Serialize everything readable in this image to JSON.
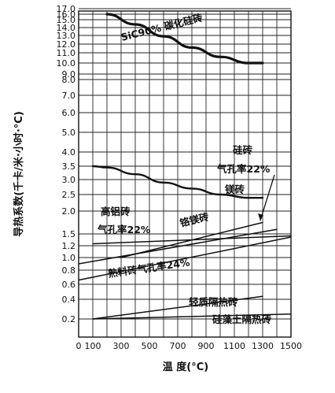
{
  "chart_data": {
    "type": "line",
    "title": "",
    "xlabel": "温 度(°C)",
    "ylabel": "导热系数(千卡/米·小时·°C)",
    "xlim": [
      0,
      1500
    ],
    "x_ticks": [
      0,
      100,
      300,
      500,
      700,
      900,
      1100,
      1300,
      1500
    ],
    "x_tick_labels": [
      "0",
      "100",
      "300",
      "500",
      "700",
      "900",
      "1100",
      "1300",
      "1500"
    ],
    "y_ticks": [
      0.2,
      0.4,
      0.6,
      0.8,
      1.0,
      1.2,
      1.5,
      2.0,
      2.5,
      3.0,
      3.5,
      4.0,
      5.0,
      6.0,
      7.0,
      8.0,
      9.0,
      10.0,
      11.0,
      12.0,
      13.0,
      14.0,
      15.0,
      16.0,
      17.0
    ],
    "y_tick_labels": [
      "0.2",
      "0.4",
      "0.6",
      "0.8",
      "1.0",
      "1.2",
      "1.5",
      "2.0",
      "2.5",
      "3.0",
      "3.5",
      "4.0",
      "5.0",
      "6.0",
      "7.0",
      "8.0",
      "9.0",
      "10.0",
      "11.0",
      "12.0",
      "13.0",
      "14.0",
      "15.0",
      "16.0",
      "17.0"
    ],
    "grid": true,
    "series": [
      {
        "name": "SiC90% 碳化硅砖",
        "x": [
          200,
          400,
          600,
          800,
          1000,
          1200,
          1300
        ],
        "y": [
          16.0,
          14.4,
          12.9,
          11.6,
          10.6,
          10.0,
          10.0
        ]
      },
      {
        "name": "镁砖",
        "x": [
          100,
          200,
          400,
          600,
          800,
          1000,
          1200,
          1300
        ],
        "y": [
          3.5,
          3.45,
          3.2,
          2.9,
          2.7,
          2.5,
          2.4,
          2.4
        ]
      },
      {
        "name": "硅砖 气孔率22%",
        "x": [
          300,
          1300
        ],
        "y": [
          1.0,
          1.75
        ]
      },
      {
        "name": "铬镁砖",
        "x": [
          100,
          1500
        ],
        "y": [
          1.25,
          1.45
        ]
      },
      {
        "name": "高铝砖 气孔率22%",
        "x": [
          0,
          1400
        ],
        "y": [
          0.9,
          1.6
        ]
      },
      {
        "name": "熟料砖气孔率24%",
        "x": [
          0,
          1500
        ],
        "y": [
          0.66,
          1.42
        ]
      },
      {
        "name": "轻质隔热砖",
        "x": [
          100,
          1300
        ],
        "y": [
          0.2,
          0.44
        ]
      },
      {
        "name": "硅藻土隔热砖",
        "x": [
          100,
          1500
        ],
        "y": [
          0.1,
          0.25
        ]
      }
    ],
    "annotations": [
      {
        "text": "SiC90% 碳化硅砖"
      },
      {
        "text": "硅砖"
      },
      {
        "text": "气孔率22%"
      },
      {
        "text": "镁砖"
      },
      {
        "text": "高铝砖"
      },
      {
        "text": "气孔率22%"
      },
      {
        "text": "铬镁砖"
      },
      {
        "text": "熟料砖气孔率24%"
      },
      {
        "text": "轻质隔热砖"
      },
      {
        "text": "硅藻土隔热砖"
      }
    ]
  }
}
